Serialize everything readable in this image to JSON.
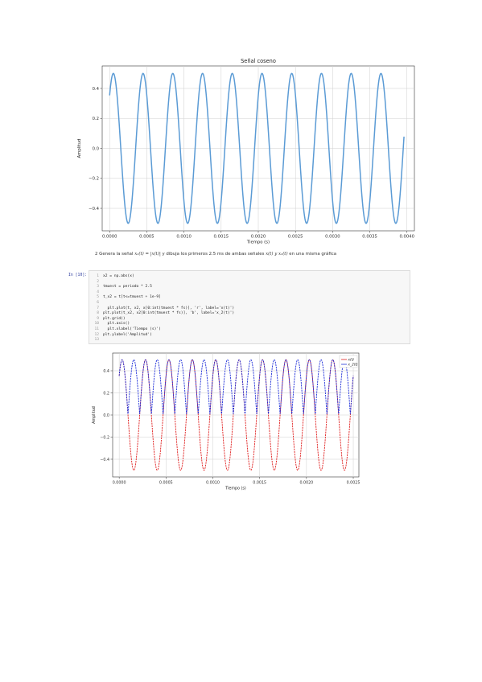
{
  "question": {
    "number": "2",
    "text_a": "Genera la señal",
    "formula_a": "x₂(t) = |x(t)|",
    "text_b": "y dibuja los primeros 2.5 ms de ambas señales",
    "formula_b": "x(t) y x₂(t)",
    "text_c": "en una misma gráfica"
  },
  "code_cell": {
    "prompt": "In [10]:",
    "lines": [
      {
        "n": "1",
        "text": "x2 = np.abs(x)"
      },
      {
        "n": "2",
        "text": ""
      },
      {
        "n": "3",
        "text": "tmuest = periodo * 2.5"
      },
      {
        "n": "4",
        "text": ""
      },
      {
        "n": "5",
        "text": "t_x2 = t[t<=tmuest + 1e-9]"
      },
      {
        "n": "6",
        "text": ""
      },
      {
        "n": "7",
        "text": "  plt.plot(t, x2, x[0:int(tmuest * fs)], 'r', label='x(t)')"
      },
      {
        "n": "8",
        "text": "plt.plot(t_x2, x2[0:int(tmuest * fs)], 'b', label='x_2(t)')"
      },
      {
        "n": "9",
        "text": "plt.grid()"
      },
      {
        "n": "10",
        "text": "  plt.axis()"
      },
      {
        "n": "11",
        "text": "  plt.xlabel('Tiempo (s)')"
      },
      {
        "n": "12",
        "text": "plt.ylabel('Amplitud')"
      },
      {
        "n": "13",
        "text": ""
      }
    ]
  },
  "chart_data": [
    {
      "type": "line",
      "title": "Señal coseno",
      "xlabel": "Tiempo (s)",
      "ylabel": "Amplitud",
      "xlim": [
        -0.0001,
        0.0041
      ],
      "ylim": [
        -0.55,
        0.55
      ],
      "xticks": [
        "0.0000",
        "0.0005",
        "0.0010",
        "0.0015",
        "0.0020",
        "0.0025",
        "0.0030",
        "0.0035",
        "0.0040"
      ],
      "yticks": [
        "0.4",
        "0.2",
        "0.0",
        "−0.2",
        "−0.4"
      ],
      "grid": true,
      "series": [
        {
          "function": "0.5*cos(2*pi*f*t + phase)",
          "amplitude": 0.5,
          "frequency_hz": 2500,
          "phase_rad": -0.785,
          "x_start": 0.0,
          "x_end": 0.00396,
          "color": "#5b9bd5"
        }
      ]
    },
    {
      "type": "line",
      "title": "",
      "xlabel": "Tiempo (s)",
      "ylabel": "Amplitud",
      "xlim": [
        -7e-05,
        0.00256
      ],
      "ylim": [
        -0.56,
        0.56
      ],
      "xticks": [
        "0.0000",
        "0.0005",
        "0.0010",
        "0.0015",
        "0.0020",
        "0.0025"
      ],
      "yticks": [
        "0.4",
        "0.2",
        "0.0",
        "−0.2",
        "−0.4"
      ],
      "grid": true,
      "legend_position": "top-right",
      "series": [
        {
          "name": "x(t)",
          "function": "0.5*cos(2*pi*f*t + phase)",
          "amplitude": 0.5,
          "frequency_hz": 4000,
          "phase_rad": -0.785,
          "x_start": 0.0,
          "x_end": 0.0025,
          "color": "#e02020"
        },
        {
          "name": "x_2(t)",
          "function": "abs(0.5*cos(2*pi*f*t + phase))",
          "amplitude": 0.5,
          "frequency_hz": 4000,
          "phase_rad": -0.785,
          "x_start": 0.0,
          "x_end": 0.0025,
          "color": "#1f2fd8"
        }
      ]
    }
  ]
}
